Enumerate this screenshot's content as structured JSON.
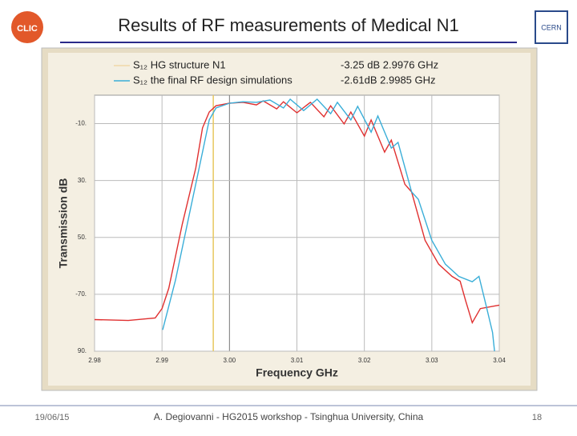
{
  "slide": {
    "title": "Results of RF measurements of Medical N1",
    "footer_date": "19/06/15",
    "footer_text": "A. Degiovanni - HG2015 workshop - Tsinghua University, China",
    "page_number": "18",
    "logo_left": "CLIC",
    "logo_right": "CERN"
  },
  "chart_data": {
    "type": "line",
    "xlabel": "Frequency GHz",
    "ylabel": "Transmission dB",
    "xlim": [
      2.98,
      3.04
    ],
    "ylim": [
      -90,
      0
    ],
    "xticks": [
      2.98,
      2.99,
      {
        "value": 3.0,
        "label": "3.00"
      },
      3.01,
      3.02,
      3.03,
      3.04
    ],
    "yticks": [
      {
        "value": -10,
        "label": "-10."
      },
      {
        "value": -30,
        "label": "30."
      },
      {
        "value": -50,
        "label": "50."
      },
      {
        "value": -70,
        "label": "-70."
      },
      {
        "value": -90,
        "label": "90."
      }
    ],
    "grid": true,
    "marker_line": {
      "x": 2.9976,
      "color": "#e8c860"
    },
    "annotations": [
      "-3.25 dB  2.9976 GHz",
      "-2.61dB  2.9985 GHz"
    ],
    "series": [
      {
        "name": "S₁₂ HG structure N1",
        "color": "#e03030",
        "x": [
          2.98,
          2.985,
          2.989,
          2.99,
          2.991,
          2.993,
          2.995,
          2.996,
          2.997,
          2.998,
          3.0,
          3.002,
          3.004,
          3.005,
          3.007,
          3.008,
          3.01,
          3.012,
          3.014,
          3.015,
          3.017,
          3.018,
          3.02,
          3.021,
          3.023,
          3.024,
          3.026,
          3.027,
          3.029,
          3.031,
          3.033,
          3.0342,
          3.035,
          3.036,
          3.0372,
          3.04
        ],
        "y": [
          -78.9,
          -79.2,
          -78.3,
          -75,
          -67.9,
          -45.4,
          -25.6,
          -11.5,
          -5.9,
          -3.7,
          -2.8,
          -2.5,
          -3.4,
          -2,
          -4.8,
          -2.3,
          -6.2,
          -2.5,
          -7.6,
          -3.7,
          -10.1,
          -5.9,
          -14.4,
          -8.7,
          -20,
          -15.8,
          -31.3,
          -34,
          -51,
          -59.4,
          -63.7,
          -65.4,
          -72.1,
          -80,
          -75,
          -73.8
        ]
      },
      {
        "name": "S₁₂ the final RF design simulations",
        "color": "#3aaed8",
        "x": [
          2.9901,
          2.992,
          2.994,
          2.996,
          2.997,
          2.998,
          3.0,
          3.002,
          3.004,
          3.006,
          3.008,
          3.009,
          3.011,
          3.013,
          3.015,
          3.016,
          3.018,
          3.019,
          3.021,
          3.022,
          3.024,
          3.025,
          3.027,
          3.028,
          3.03,
          3.032,
          3.034,
          3.036,
          3.037,
          3.038,
          3.039,
          3.0393
        ],
        "y": [
          -82.5,
          -65,
          -42.5,
          -20,
          -8.7,
          -4.5,
          -2.8,
          -2.3,
          -2.5,
          -1.7,
          -4.5,
          -1.4,
          -5.4,
          -1.4,
          -6.5,
          -2.5,
          -8.7,
          -3.9,
          -13,
          -7.3,
          -18.6,
          -16.6,
          -34,
          -36.6,
          -51,
          -59.4,
          -63.7,
          -65.6,
          -63.7,
          -73.5,
          -83.4,
          -90
        ]
      }
    ]
  }
}
